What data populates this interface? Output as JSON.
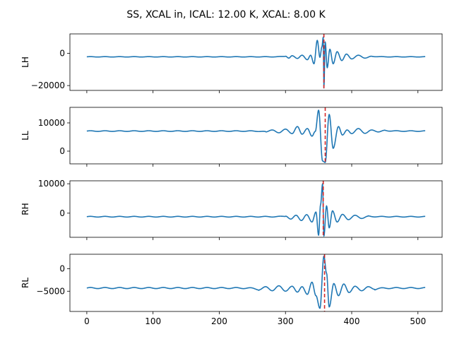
{
  "figure": {
    "title": "SS, XCAL in, ICAL: 12.00 K, XCAL: 8.00 K",
    "line_color": "#1f77b4",
    "marker_color": "#d62728"
  },
  "chart_data": [
    {
      "type": "line",
      "ylabel": "LH",
      "x_range": [
        0,
        511
      ],
      "xlim": [
        -25.5,
        536.5
      ],
      "ylim": [
        -23000,
        12000
      ],
      "yticks": [
        -20000,
        0
      ],
      "ytick_labels": [
        "−20000",
        "0"
      ],
      "show_xtick_labels": false,
      "marker_x": 358,
      "series": [
        {
          "baseline": -2200,
          "peaks": [
            {
              "x": 300,
              "y": -1800
            },
            {
              "x": 305,
              "y": -3000
            },
            {
              "x": 310,
              "y": -1500
            },
            {
              "x": 318,
              "y": -3200
            },
            {
              "x": 325,
              "y": -1200
            },
            {
              "x": 333,
              "y": -4000
            },
            {
              "x": 338,
              "y": -1200
            },
            {
              "x": 343,
              "y": -6500
            },
            {
              "x": 348,
              "y": 8000
            },
            {
              "x": 352,
              "y": -2500
            },
            {
              "x": 355,
              "y": 4000
            },
            {
              "x": 357,
              "y": 10000
            },
            {
              "x": 358,
              "y": -21500
            },
            {
              "x": 360,
              "y": 7000
            },
            {
              "x": 363,
              "y": -9000
            },
            {
              "x": 367,
              "y": 2500
            },
            {
              "x": 372,
              "y": -6500
            },
            {
              "x": 378,
              "y": 1000
            },
            {
              "x": 385,
              "y": -4500
            },
            {
              "x": 392,
              "y": -500
            },
            {
              "x": 400,
              "y": -3500
            },
            {
              "x": 410,
              "y": -1200
            },
            {
              "x": 420,
              "y": -3000
            },
            {
              "x": 430,
              "y": -1800
            }
          ]
        }
      ]
    },
    {
      "type": "line",
      "ylabel": "LL",
      "x_range": [
        0,
        511
      ],
      "xlim": [
        -25.5,
        536.5
      ],
      "ylim": [
        -4500,
        15500
      ],
      "yticks": [
        0,
        10000
      ],
      "ytick_labels": [
        "0",
        "10000"
      ],
      "show_xtick_labels": false,
      "marker_x": 360,
      "series": [
        {
          "baseline": 7100,
          "peaks": [
            {
              "x": 270,
              "y": 6800
            },
            {
              "x": 280,
              "y": 7500
            },
            {
              "x": 290,
              "y": 6500
            },
            {
              "x": 300,
              "y": 7800
            },
            {
              "x": 310,
              "y": 6200
            },
            {
              "x": 318,
              "y": 8700
            },
            {
              "x": 325,
              "y": 6000
            },
            {
              "x": 333,
              "y": 8000
            },
            {
              "x": 340,
              "y": 5300
            },
            {
              "x": 345,
              "y": 7000
            },
            {
              "x": 350,
              "y": 14500
            },
            {
              "x": 356,
              "y": -3500
            },
            {
              "x": 360,
              "y": -4000
            },
            {
              "x": 366,
              "y": 13000
            },
            {
              "x": 372,
              "y": 1000
            },
            {
              "x": 380,
              "y": 8700
            },
            {
              "x": 386,
              "y": 5700
            },
            {
              "x": 393,
              "y": 7500
            },
            {
              "x": 400,
              "y": 6200
            },
            {
              "x": 410,
              "y": 8000
            },
            {
              "x": 420,
              "y": 6300
            },
            {
              "x": 430,
              "y": 7500
            },
            {
              "x": 440,
              "y": 6800
            },
            {
              "x": 450,
              "y": 7400
            }
          ]
        }
      ]
    },
    {
      "type": "line",
      "ylabel": "RH",
      "x_range": [
        0,
        511
      ],
      "xlim": [
        -25.5,
        536.5
      ],
      "ylim": [
        -8200,
        11000
      ],
      "yticks": [
        0,
        10000
      ],
      "ytick_labels": [
        "0",
        "10000"
      ],
      "show_xtick_labels": false,
      "marker_x": 357,
      "series": [
        {
          "baseline": -1200,
          "peaks": [
            {
              "x": 300,
              "y": -1000
            },
            {
              "x": 308,
              "y": -2000
            },
            {
              "x": 316,
              "y": -700
            },
            {
              "x": 324,
              "y": -2500
            },
            {
              "x": 332,
              "y": -500
            },
            {
              "x": 340,
              "y": -3000
            },
            {
              "x": 346,
              "y": 400
            },
            {
              "x": 350,
              "y": -7500
            },
            {
              "x": 353,
              "y": 3000
            },
            {
              "x": 356,
              "y": 10000
            },
            {
              "x": 358,
              "y": -7800
            },
            {
              "x": 362,
              "y": 2500
            },
            {
              "x": 366,
              "y": -5000
            },
            {
              "x": 371,
              "y": 800
            },
            {
              "x": 378,
              "y": -3000
            },
            {
              "x": 386,
              "y": -400
            },
            {
              "x": 395,
              "y": -2200
            },
            {
              "x": 405,
              "y": -700
            },
            {
              "x": 415,
              "y": -1800
            },
            {
              "x": 425,
              "y": -1000
            }
          ]
        }
      ]
    },
    {
      "type": "line",
      "ylabel": "RL",
      "x_range": [
        0,
        511
      ],
      "xlim": [
        -25.5,
        536.5
      ],
      "ylim": [
        -9500,
        3200
      ],
      "yticks": [
        -5000,
        0
      ],
      "ytick_labels": [
        "−5000",
        "0"
      ],
      "show_xtick_labels": true,
      "xticks": [
        0,
        100,
        200,
        300,
        400,
        500
      ],
      "xtick_labels": [
        "0",
        "100",
        "200",
        "300",
        "400",
        "500"
      ],
      "marker_x": 359,
      "series": [
        {
          "baseline": -4300,
          "peaks": [
            {
              "x": 260,
              "y": -4700
            },
            {
              "x": 270,
              "y": -4000
            },
            {
              "x": 280,
              "y": -4900
            },
            {
              "x": 290,
              "y": -3800
            },
            {
              "x": 300,
              "y": -5000
            },
            {
              "x": 310,
              "y": -3900
            },
            {
              "x": 318,
              "y": -5200
            },
            {
              "x": 325,
              "y": -4000
            },
            {
              "x": 333,
              "y": -5700
            },
            {
              "x": 340,
              "y": -3000
            },
            {
              "x": 346,
              "y": -6000
            },
            {
              "x": 352,
              "y": -8800
            },
            {
              "x": 358,
              "y": 2800
            },
            {
              "x": 362,
              "y": -1000
            },
            {
              "x": 366,
              "y": -8500
            },
            {
              "x": 373,
              "y": -3300
            },
            {
              "x": 380,
              "y": -6000
            },
            {
              "x": 388,
              "y": -3400
            },
            {
              "x": 396,
              "y": -5300
            },
            {
              "x": 405,
              "y": -3900
            },
            {
              "x": 415,
              "y": -4900
            },
            {
              "x": 425,
              "y": -4000
            },
            {
              "x": 435,
              "y": -4600
            }
          ]
        }
      ]
    }
  ]
}
